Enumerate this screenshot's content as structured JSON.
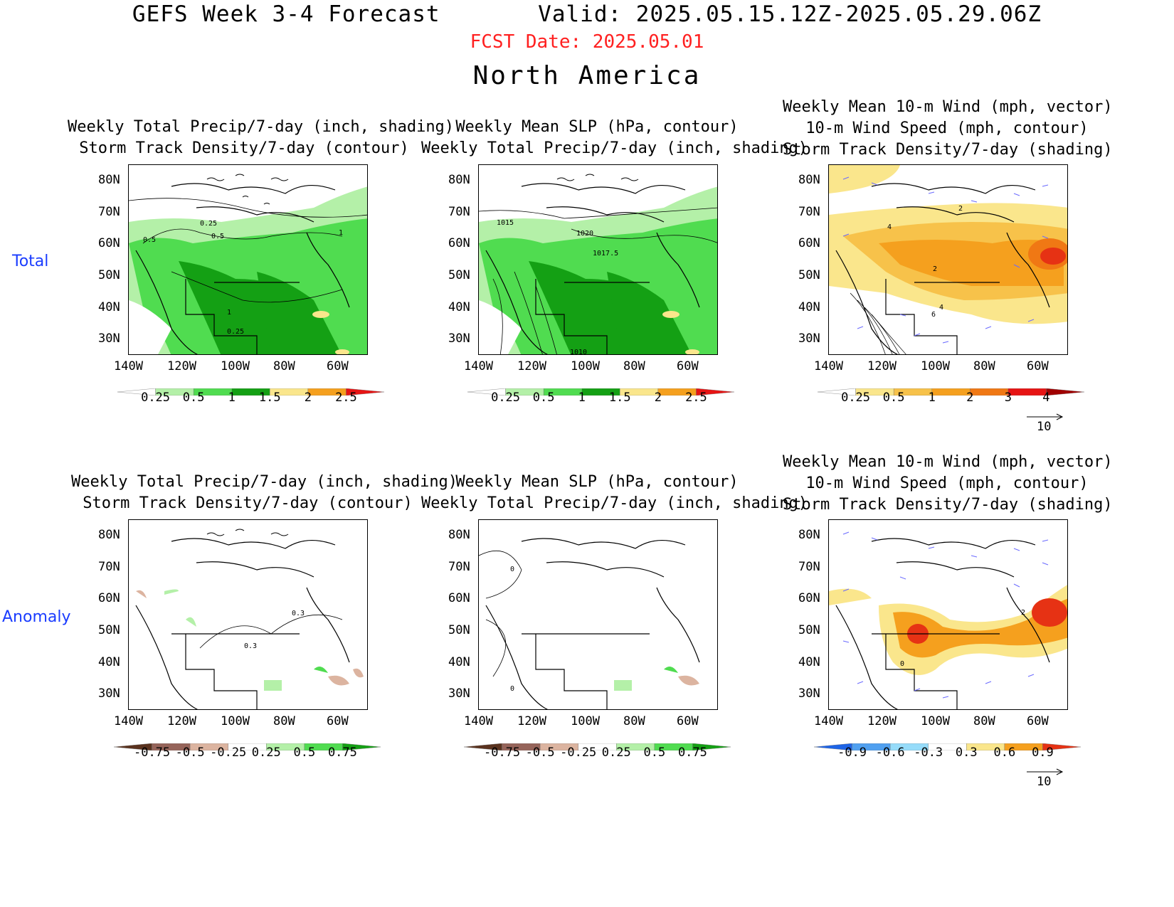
{
  "header": {
    "title": "GEFS Week 3-4 Forecast       Valid: 2025.05.15.12Z-2025.05.29.06Z",
    "fcst_date": "FCST Date: 2025.05.01",
    "region": "North America",
    "fcst_color": "#ff2020"
  },
  "rows": [
    {
      "label": "Total",
      "color": "#1a3cff"
    },
    {
      "label": "Anomaly",
      "color": "#1a3cff"
    }
  ],
  "panels": {
    "precip": {
      "title1": "Weekly Total Precip/7-day (inch, shading)",
      "title2": "Storm Track Density/7-day (contour)"
    },
    "slp": {
      "title1": "Weekly Mean SLP (hPa, contour)",
      "title2": "Weekly Total Precip/7-day (inch, shading)"
    },
    "wind": {
      "title1": "Weekly Mean 10-m Wind (mph, vector)",
      "title2": "10-m Wind Speed (mph, contour)",
      "title3": "Storm Track Density/7-day (shading)"
    }
  },
  "axes": {
    "lat_ticks": [
      "80N",
      "70N",
      "60N",
      "50N",
      "40N",
      "30N"
    ],
    "lon_ticks": [
      "140W",
      "120W",
      "100W",
      "80W",
      "60W"
    ]
  },
  "contour_labels": {
    "precip_total": [
      "0.25",
      "0.5",
      "1",
      "0.5",
      "1",
      "0.25"
    ],
    "slp_total": [
      "1015",
      "1020",
      "1017.5",
      "1010"
    ],
    "wind_total": [
      "4",
      "2",
      "2",
      "4",
      "6"
    ],
    "precip_anom": [
      "0.3",
      "0.3"
    ],
    "slp_anom": [
      "0",
      "0"
    ],
    "wind_anom": [
      "2",
      "0"
    ]
  },
  "colorbars": {
    "precip_total": {
      "labels": [
        "0.25",
        "0.5",
        "1",
        "1.5",
        "2",
        "2.5"
      ],
      "colors": [
        "#ffffff",
        "#b4f0a8",
        "#50dc50",
        "#14a014",
        "#fae68c",
        "#f5a01e",
        "#e61414"
      ]
    },
    "stdens_total": {
      "labels": [
        "0.25",
        "0.5",
        "1",
        "2",
        "3",
        "4"
      ],
      "colors": [
        "#ffffff",
        "#fae68c",
        "#f7c24a",
        "#f5a01e",
        "#f07814",
        "#e61414",
        "#a00000"
      ]
    },
    "precip_anom": {
      "labels": [
        "-0.75",
        "-0.5",
        "-0.25",
        "0.25",
        "0.5",
        "0.75"
      ],
      "colors": [
        "#5a321e",
        "#96645a",
        "#dcb4a0",
        "#ffffff",
        "#b4f0a8",
        "#50dc50",
        "#14a014"
      ]
    },
    "stdens_anom": {
      "labels": [
        "-0.9",
        "-0.6",
        "-0.3",
        "0.3",
        "0.6",
        "0.9"
      ],
      "colors": [
        "#1e64e6",
        "#50a0f0",
        "#96dcfa",
        "#ffffff",
        "#fae68c",
        "#f5a01e",
        "#e63214"
      ]
    }
  },
  "vector_reference": {
    "value": "10"
  },
  "palette": {
    "green_light": "#b4f0a8",
    "green_mid": "#50dc50",
    "green_dark": "#14a014",
    "yellow": "#fae68c",
    "orange_light": "#f7c24a",
    "orange": "#f5a01e",
    "red": "#e63214",
    "brown": "#dcb4a0",
    "vector_blue": "#6a6aff"
  }
}
